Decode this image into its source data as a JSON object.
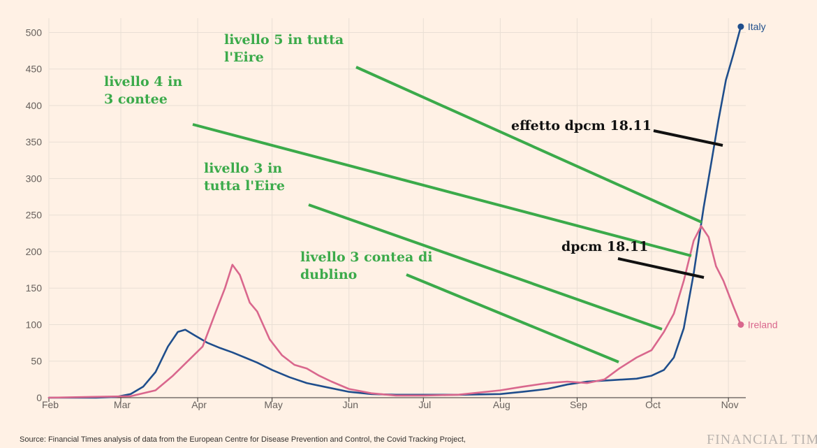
{
  "chart_data": {
    "type": "line",
    "title": "",
    "xlabel": "",
    "ylabel": "",
    "ylim": [
      0,
      510
    ],
    "yticks": [
      0,
      50,
      100,
      150,
      200,
      250,
      300,
      350,
      400,
      450,
      500
    ],
    "xlim": [
      "2020-02-01",
      "2020-11-08"
    ],
    "xticks": [
      {
        "label": "Feb",
        "date": "2020-02-01"
      },
      {
        "label": "Mar",
        "date": "2020-03-01"
      },
      {
        "label": "Apr",
        "date": "2020-04-01"
      },
      {
        "label": "May",
        "date": "2020-05-01"
      },
      {
        "label": "Jun",
        "date": "2020-06-01"
      },
      {
        "label": "Jul",
        "date": "2020-07-01"
      },
      {
        "label": "Aug",
        "date": "2020-08-01"
      },
      {
        "label": "Sep",
        "date": "2020-09-01"
      },
      {
        "label": "Oct",
        "date": "2020-10-01"
      },
      {
        "label": "Nov",
        "date": "2020-11-01"
      }
    ],
    "grid": true,
    "series": [
      {
        "name": "Italy",
        "color": "#1F4E8C",
        "x": [
          "2020-02-01",
          "2020-02-20",
          "2020-02-28",
          "2020-03-05",
          "2020-03-10",
          "2020-03-15",
          "2020-03-20",
          "2020-03-24",
          "2020-03-27",
          "2020-03-31",
          "2020-04-05",
          "2020-04-10",
          "2020-04-15",
          "2020-04-20",
          "2020-04-25",
          "2020-05-01",
          "2020-05-08",
          "2020-05-15",
          "2020-05-22",
          "2020-06-01",
          "2020-06-10",
          "2020-06-20",
          "2020-07-01",
          "2020-07-15",
          "2020-08-01",
          "2020-08-10",
          "2020-08-20",
          "2020-08-28",
          "2020-09-05",
          "2020-09-15",
          "2020-09-25",
          "2020-10-01",
          "2020-10-06",
          "2020-10-10",
          "2020-10-14",
          "2020-10-18",
          "2020-10-22",
          "2020-10-25",
          "2020-10-28",
          "2020-10-31",
          "2020-11-03",
          "2020-11-06"
        ],
        "values": [
          0,
          0,
          1,
          5,
          15,
          35,
          70,
          90,
          93,
          85,
          75,
          68,
          62,
          55,
          48,
          38,
          28,
          20,
          15,
          8,
          5,
          4,
          4,
          4,
          5,
          8,
          12,
          18,
          22,
          24,
          26,
          30,
          38,
          55,
          95,
          170,
          260,
          320,
          380,
          435,
          470,
          508
        ]
      },
      {
        "name": "Ireland",
        "color": "#D9678D",
        "x": [
          "2020-02-01",
          "2020-03-05",
          "2020-03-15",
          "2020-03-22",
          "2020-03-28",
          "2020-04-03",
          "2020-04-08",
          "2020-04-12",
          "2020-04-15",
          "2020-04-18",
          "2020-04-22",
          "2020-04-25",
          "2020-04-30",
          "2020-05-05",
          "2020-05-10",
          "2020-05-15",
          "2020-05-20",
          "2020-05-25",
          "2020-06-01",
          "2020-06-10",
          "2020-06-20",
          "2020-07-01",
          "2020-07-15",
          "2020-08-01",
          "2020-08-10",
          "2020-08-20",
          "2020-08-28",
          "2020-09-05",
          "2020-09-12",
          "2020-09-18",
          "2020-09-25",
          "2020-10-01",
          "2020-10-06",
          "2020-10-10",
          "2020-10-14",
          "2020-10-18",
          "2020-10-21",
          "2020-10-24",
          "2020-10-27",
          "2020-10-30",
          "2020-11-03",
          "2020-11-06"
        ],
        "values": [
          0,
          2,
          10,
          30,
          50,
          70,
          115,
          150,
          182,
          168,
          130,
          118,
          80,
          58,
          45,
          40,
          30,
          22,
          12,
          6,
          3,
          3,
          4,
          10,
          15,
          20,
          22,
          20,
          25,
          40,
          55,
          65,
          90,
          115,
          160,
          215,
          235,
          220,
          180,
          160,
          125,
          100
        ]
      }
    ]
  },
  "series_labels": {
    "italy": "Italy",
    "ireland": "Ireland"
  },
  "annotations": {
    "livello5": [
      "livello 5 in tutta",
      "l'Eire"
    ],
    "livello4": [
      "livello 4 in",
      "3 contee"
    ],
    "livello3_eire": [
      "livello 3 in",
      "tutta l'Eire"
    ],
    "livello3_dublino": [
      "livello 3 contea di",
      "dublino"
    ],
    "effetto_dpcm": "effetto dpcm 18.11",
    "dpcm": "dpcm 18.11"
  },
  "colors": {
    "background": "#FFF1E5",
    "grid": "#E9DFD5",
    "annotation_green": "#3BAA4A",
    "annotation_black": "#111111"
  },
  "footer": {
    "source": "Source: Financial Times analysis of data from the European Centre for Disease Prevention and Control, the Covid Tracking Project,",
    "brand": "FINANCIAL TIM"
  }
}
